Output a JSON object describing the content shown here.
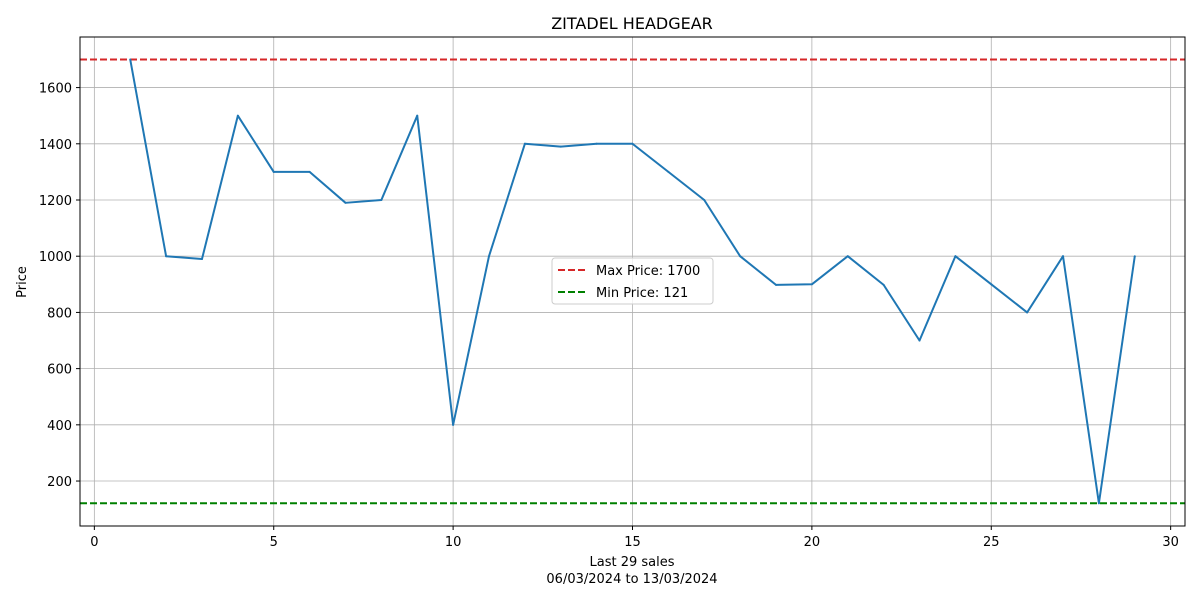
{
  "chart_data": {
    "type": "line",
    "title": "ZITADEL HEADGEAR",
    "xlabel_line1": "Last 29 sales",
    "xlabel_line2": "06/03/2024 to 13/03/2024",
    "ylabel": "Price",
    "xlim": [
      -0.4,
      30.4
    ],
    "ylim": [
      40,
      1780
    ],
    "x_ticks": [
      0,
      5,
      10,
      15,
      20,
      25,
      30
    ],
    "y_ticks": [
      200,
      400,
      600,
      800,
      1000,
      1200,
      1400,
      1600
    ],
    "grid": true,
    "legend_position": "center",
    "series": [
      {
        "color": "#1f77b4",
        "x": [
          1,
          2,
          3,
          4,
          5,
          6,
          7,
          8,
          9,
          10,
          11,
          12,
          13,
          14,
          15,
          16,
          17,
          18,
          19,
          20,
          21,
          22,
          23,
          24,
          25,
          26,
          27,
          28,
          29
        ],
        "values": [
          1700,
          1000,
          990,
          1500,
          1300,
          1300,
          1190,
          1200,
          1500,
          400,
          1000,
          1400,
          1390,
          1400,
          1400,
          1300,
          1200,
          1000,
          898,
          900,
          1000,
          898,
          700,
          1000,
          900,
          800,
          1000,
          121,
          1000
        ]
      }
    ],
    "reference_lines": [
      {
        "name": "Max Price: 1700",
        "value": 1700,
        "color": "#d62728",
        "style": "dashed"
      },
      {
        "name": "Min Price: 121",
        "value": 121,
        "color": "#008000",
        "style": "dashed"
      }
    ]
  }
}
